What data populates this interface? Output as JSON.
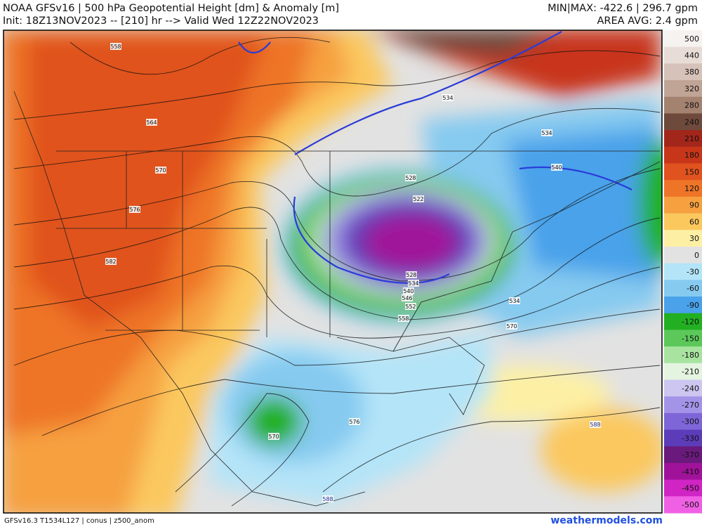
{
  "header": {
    "title": "NOAA GFSv16 | 500 hPa Geopotential Height [dm] & Anomaly [m]",
    "init": "Init: 18Z13NOV2023 -- [210] hr --> Valid Wed 12Z22NOV2023",
    "minmax": "MIN|MAX: -422.6 | 296.7 gpm",
    "area_avg": "AREA AVG: 2.4 gpm"
  },
  "colorbar": {
    "levels": [
      500,
      440,
      380,
      320,
      280,
      240,
      210,
      180,
      150,
      120,
      90,
      60,
      30,
      0,
      -30,
      -60,
      -90,
      -120,
      -150,
      -180,
      -210,
      -240,
      -270,
      -300,
      -330,
      -370,
      -410,
      -450,
      -500
    ],
    "colors": [
      "#f6f2f0",
      "#e8dcd6",
      "#d6c2b8",
      "#c0a496",
      "#a48270",
      "#6e4a3c",
      "#a3261a",
      "#c8361a",
      "#e0521e",
      "#ee7428",
      "#f6a040",
      "#fbc85e",
      "#fdf0a4",
      "#e2e2e2",
      "#b4e4f8",
      "#86caf0",
      "#4aa2ea",
      "#22b022",
      "#5cc85a",
      "#a8e4a0",
      "#e4f4e0",
      "#ccc6f0",
      "#a494e8",
      "#7e66d8",
      "#5c3cb8",
      "#6a1a7c",
      "#a0129a",
      "#d024c4",
      "#f060e4"
    ]
  },
  "contour_labels": [
    558,
    564,
    570,
    576,
    582,
    534,
    534,
    540,
    528,
    522,
    528,
    534,
    540,
    546,
    552,
    558,
    534,
    570,
    570,
    576,
    588,
    588
  ],
  "footer": {
    "model": "GFSv16.3 T1534L127 | conus | z500_anom",
    "site": "weathermodels.com"
  }
}
